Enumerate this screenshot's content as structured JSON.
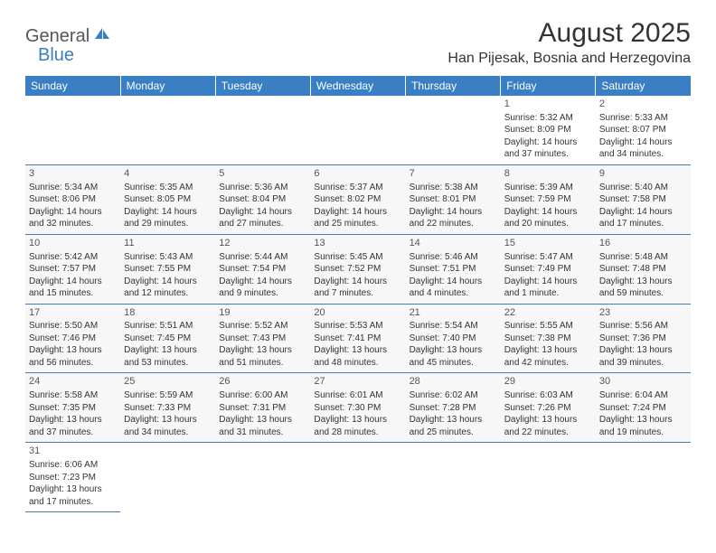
{
  "logo": {
    "part1": "General",
    "part2": "Blue"
  },
  "title": "August 2025",
  "location": "Han Pijesak, Bosnia and Herzegovina",
  "colors": {
    "header_bg": "#3a7fc4",
    "header_text": "#ffffff",
    "cell_border": "#3a7fc4",
    "cell_bg_alt": "#f7f7f7",
    "text": "#333333"
  },
  "day_headers": [
    "Sunday",
    "Monday",
    "Tuesday",
    "Wednesday",
    "Thursday",
    "Friday",
    "Saturday"
  ],
  "weeks": [
    [
      null,
      null,
      null,
      null,
      null,
      {
        "n": "1",
        "sr": "5:32 AM",
        "ss": "8:09 PM",
        "dl": "14 hours and 37 minutes."
      },
      {
        "n": "2",
        "sr": "5:33 AM",
        "ss": "8:07 PM",
        "dl": "14 hours and 34 minutes."
      }
    ],
    [
      {
        "n": "3",
        "sr": "5:34 AM",
        "ss": "8:06 PM",
        "dl": "14 hours and 32 minutes."
      },
      {
        "n": "4",
        "sr": "5:35 AM",
        "ss": "8:05 PM",
        "dl": "14 hours and 29 minutes."
      },
      {
        "n": "5",
        "sr": "5:36 AM",
        "ss": "8:04 PM",
        "dl": "14 hours and 27 minutes."
      },
      {
        "n": "6",
        "sr": "5:37 AM",
        "ss": "8:02 PM",
        "dl": "14 hours and 25 minutes."
      },
      {
        "n": "7",
        "sr": "5:38 AM",
        "ss": "8:01 PM",
        "dl": "14 hours and 22 minutes."
      },
      {
        "n": "8",
        "sr": "5:39 AM",
        "ss": "7:59 PM",
        "dl": "14 hours and 20 minutes."
      },
      {
        "n": "9",
        "sr": "5:40 AM",
        "ss": "7:58 PM",
        "dl": "14 hours and 17 minutes."
      }
    ],
    [
      {
        "n": "10",
        "sr": "5:42 AM",
        "ss": "7:57 PM",
        "dl": "14 hours and 15 minutes."
      },
      {
        "n": "11",
        "sr": "5:43 AM",
        "ss": "7:55 PM",
        "dl": "14 hours and 12 minutes."
      },
      {
        "n": "12",
        "sr": "5:44 AM",
        "ss": "7:54 PM",
        "dl": "14 hours and 9 minutes."
      },
      {
        "n": "13",
        "sr": "5:45 AM",
        "ss": "7:52 PM",
        "dl": "14 hours and 7 minutes."
      },
      {
        "n": "14",
        "sr": "5:46 AM",
        "ss": "7:51 PM",
        "dl": "14 hours and 4 minutes."
      },
      {
        "n": "15",
        "sr": "5:47 AM",
        "ss": "7:49 PM",
        "dl": "14 hours and 1 minute."
      },
      {
        "n": "16",
        "sr": "5:48 AM",
        "ss": "7:48 PM",
        "dl": "13 hours and 59 minutes."
      }
    ],
    [
      {
        "n": "17",
        "sr": "5:50 AM",
        "ss": "7:46 PM",
        "dl": "13 hours and 56 minutes."
      },
      {
        "n": "18",
        "sr": "5:51 AM",
        "ss": "7:45 PM",
        "dl": "13 hours and 53 minutes."
      },
      {
        "n": "19",
        "sr": "5:52 AM",
        "ss": "7:43 PM",
        "dl": "13 hours and 51 minutes."
      },
      {
        "n": "20",
        "sr": "5:53 AM",
        "ss": "7:41 PM",
        "dl": "13 hours and 48 minutes."
      },
      {
        "n": "21",
        "sr": "5:54 AM",
        "ss": "7:40 PM",
        "dl": "13 hours and 45 minutes."
      },
      {
        "n": "22",
        "sr": "5:55 AM",
        "ss": "7:38 PM",
        "dl": "13 hours and 42 minutes."
      },
      {
        "n": "23",
        "sr": "5:56 AM",
        "ss": "7:36 PM",
        "dl": "13 hours and 39 minutes."
      }
    ],
    [
      {
        "n": "24",
        "sr": "5:58 AM",
        "ss": "7:35 PM",
        "dl": "13 hours and 37 minutes."
      },
      {
        "n": "25",
        "sr": "5:59 AM",
        "ss": "7:33 PM",
        "dl": "13 hours and 34 minutes."
      },
      {
        "n": "26",
        "sr": "6:00 AM",
        "ss": "7:31 PM",
        "dl": "13 hours and 31 minutes."
      },
      {
        "n": "27",
        "sr": "6:01 AM",
        "ss": "7:30 PM",
        "dl": "13 hours and 28 minutes."
      },
      {
        "n": "28",
        "sr": "6:02 AM",
        "ss": "7:28 PM",
        "dl": "13 hours and 25 minutes."
      },
      {
        "n": "29",
        "sr": "6:03 AM",
        "ss": "7:26 PM",
        "dl": "13 hours and 22 minutes."
      },
      {
        "n": "30",
        "sr": "6:04 AM",
        "ss": "7:24 PM",
        "dl": "13 hours and 19 minutes."
      }
    ],
    [
      {
        "n": "31",
        "sr": "6:06 AM",
        "ss": "7:23 PM",
        "dl": "13 hours and 17 minutes."
      },
      null,
      null,
      null,
      null,
      null,
      null
    ]
  ],
  "labels": {
    "sunrise": "Sunrise: ",
    "sunset": "Sunset: ",
    "daylight": "Daylight: "
  }
}
